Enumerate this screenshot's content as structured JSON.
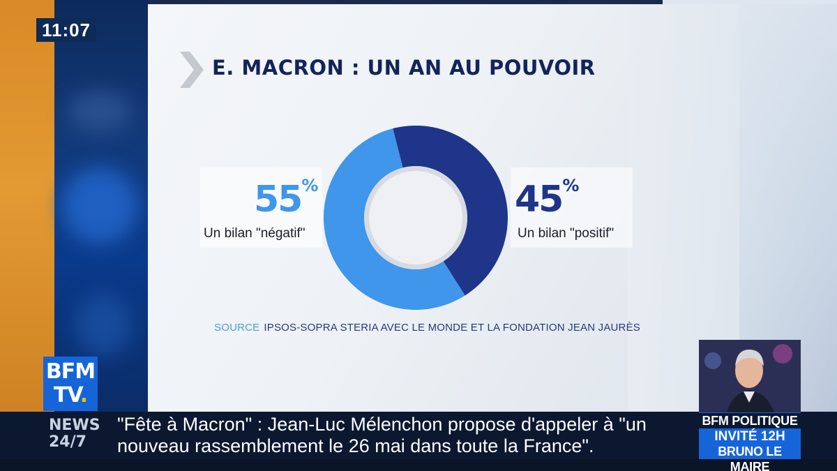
{
  "clock": "11:07",
  "chart_data": {
    "type": "pie",
    "title": "E. MACRON : UN AN AU POUVOIR",
    "slices": [
      {
        "label": "Un bilan \"négatif\"",
        "value": 55,
        "color": "#3f96ea"
      },
      {
        "label": "Un bilan \"positif\"",
        "value": 45,
        "color": "#1e3589"
      }
    ],
    "labels": [
      {
        "value": "55",
        "unit": "%",
        "text": "Un bilan \"négatif\"",
        "color": "#3f96ea"
      },
      {
        "value": "45",
        "unit": "%",
        "text": "Un bilan \"positif\"",
        "color": "#1e3589"
      }
    ],
    "source_label": "SOURCE",
    "source_text": "IPSOS-SOPRA STERIA AVEC LE MONDE ET LA FONDATION JEAN JAURÈS"
  },
  "logo": {
    "line1": "BFM",
    "line2": "TV",
    "dot": "."
  },
  "ticker": {
    "news_line1": "NEWS",
    "news_line2": "24/7",
    "headline": "\"Fête à Macron\" : Jean-Luc Mélenchon propose d'appeler à \"un nouveau rassemblement le 26 mai dans toute la France\"."
  },
  "inset": {
    "show": "BFM POLITIQUE",
    "line2": "INVITÉ 12H",
    "line3": "BRUNO LE MAIRE"
  }
}
